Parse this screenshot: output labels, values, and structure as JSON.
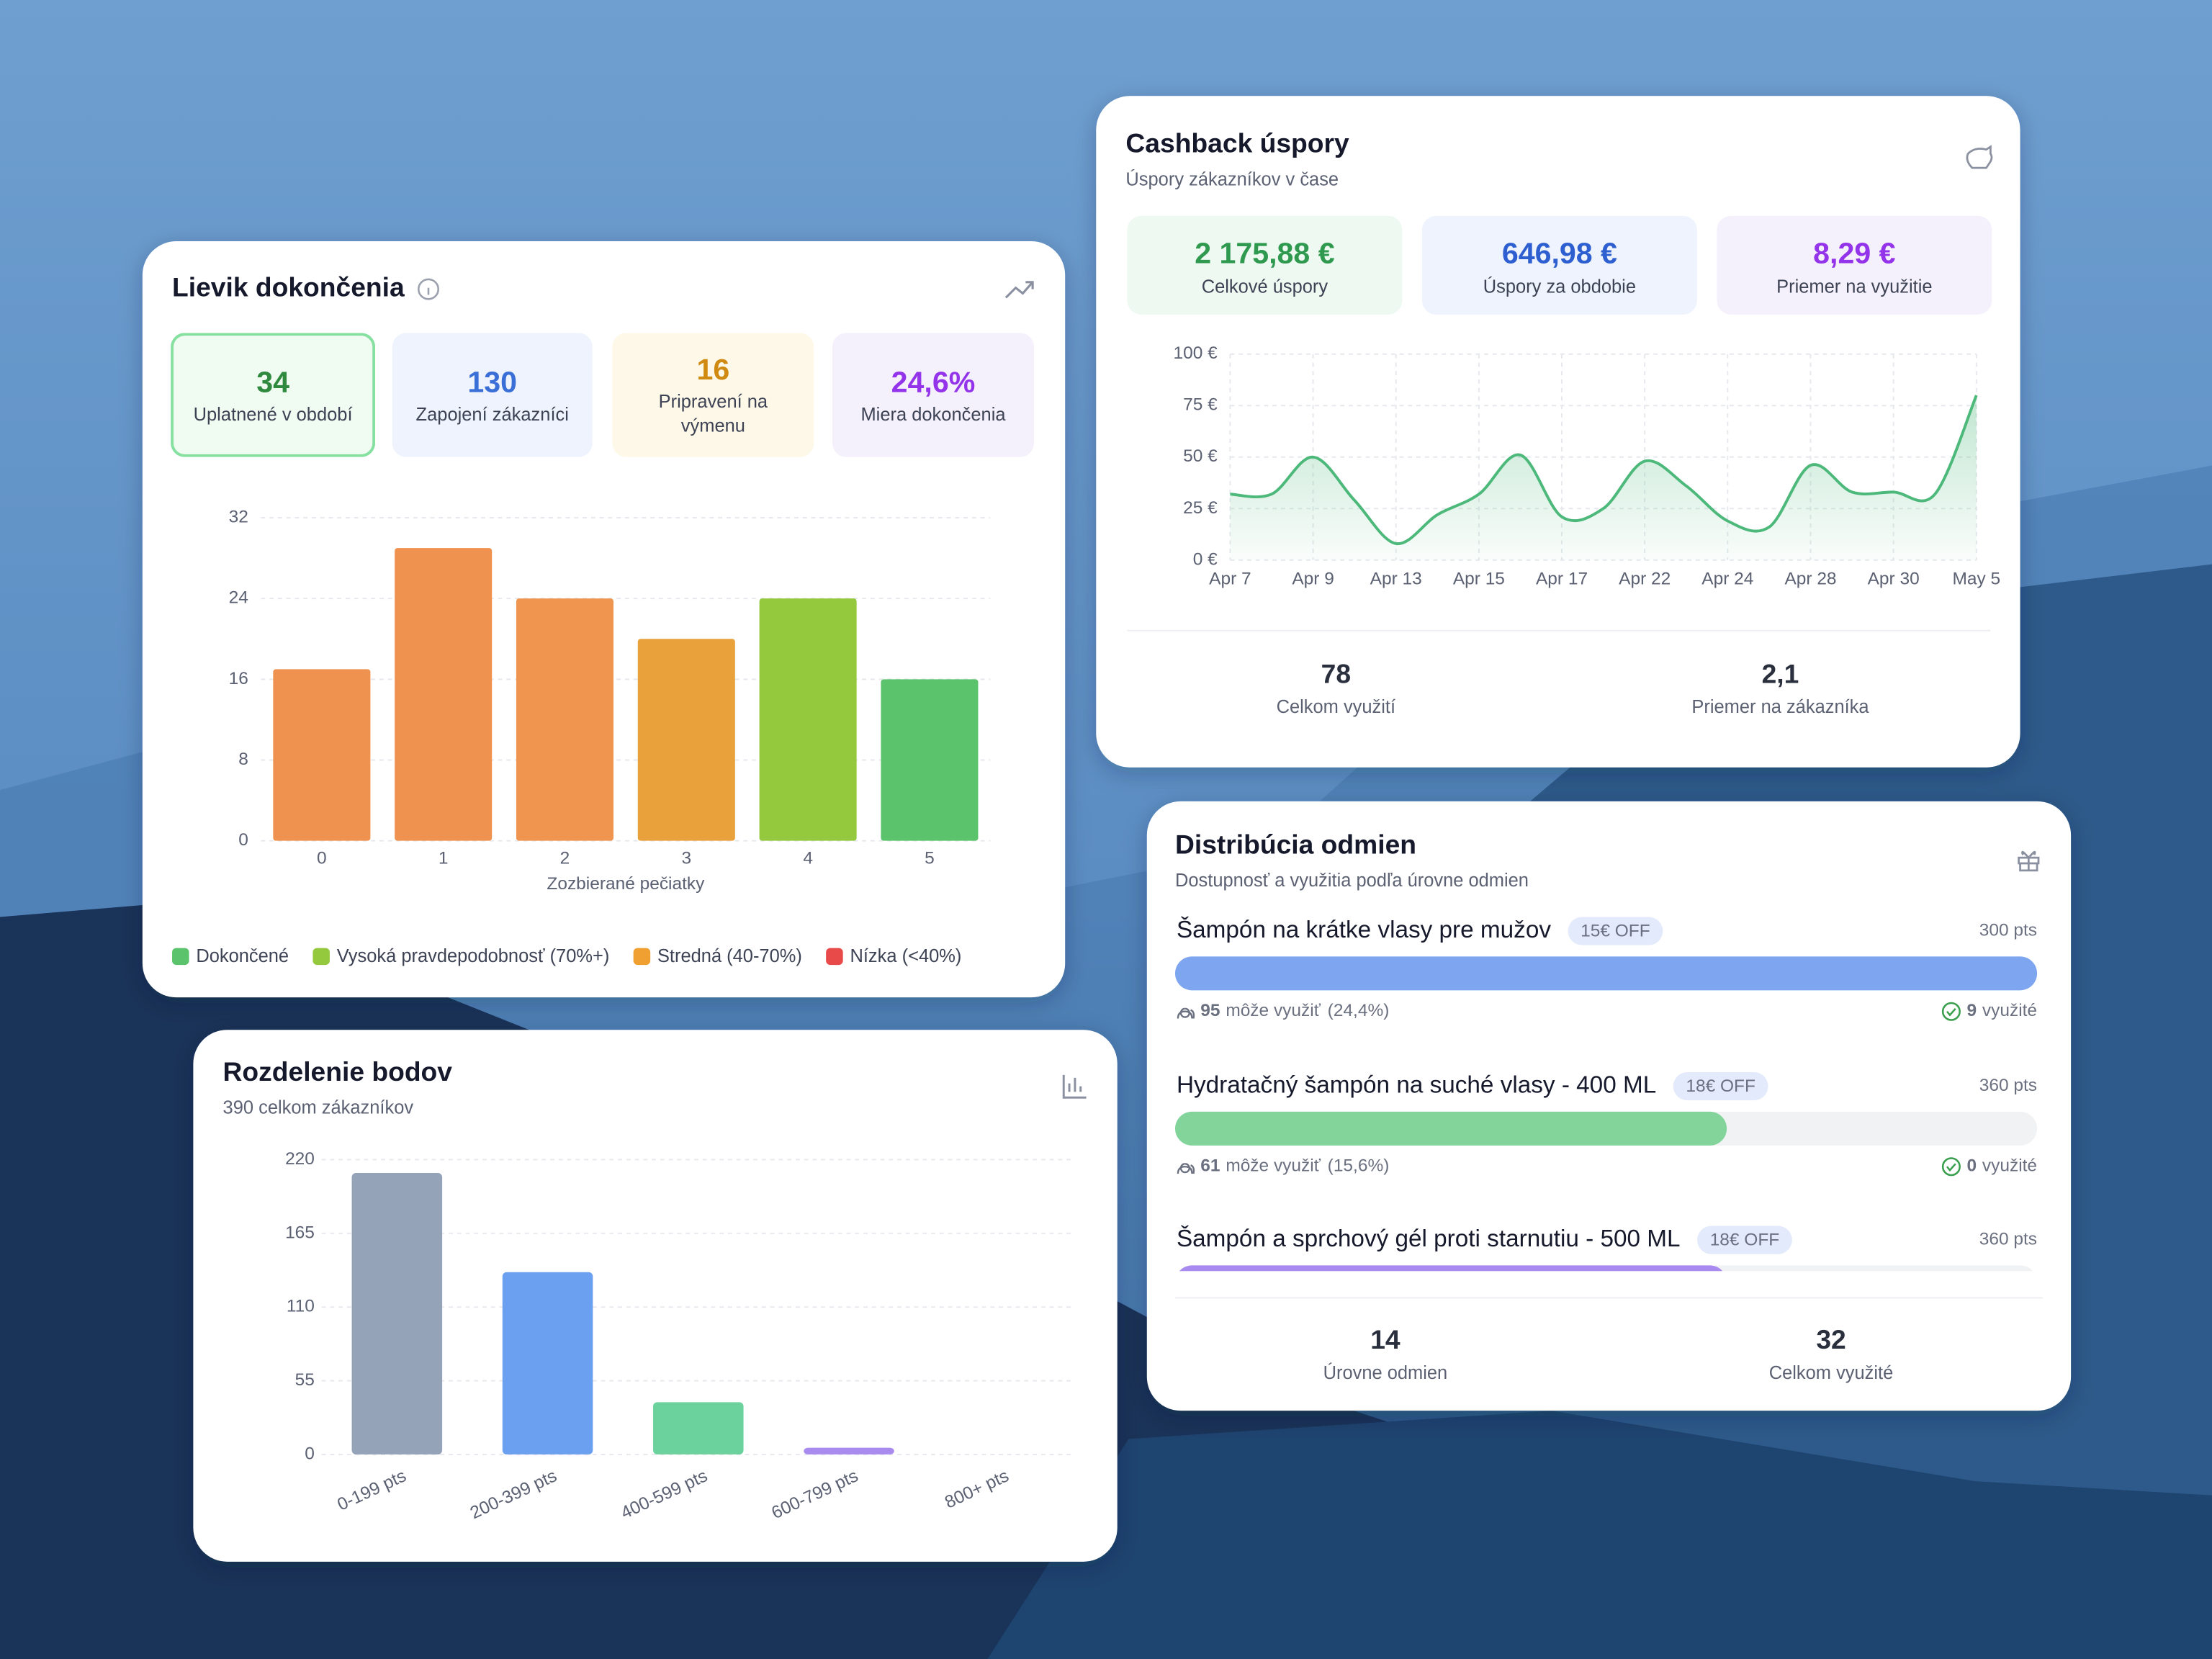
{
  "chart_data": [
    {
      "type": "bar",
      "title": "Lievik dokončenia",
      "stats": [
        {
          "value": "34",
          "label": "Uplatnené v období"
        },
        {
          "value": "130",
          "label": "Zapojení zákazníci"
        },
        {
          "value": "16",
          "label": "Pripravení na výmenu"
        },
        {
          "value": "24,6%",
          "label": "Miera dokončenia"
        }
      ],
      "categories": [
        "0",
        "1",
        "2",
        "3",
        "4",
        "5"
      ],
      "values": [
        17,
        29,
        24,
        20,
        24,
        16
      ],
      "colors": [
        "#f0924f",
        "#f0924f",
        "#ef9550",
        "#e9a23b",
        "#94c83d",
        "#5bc36b"
      ],
      "ylim": [
        0,
        32
      ],
      "yticks": [
        0,
        8,
        16,
        24,
        32
      ],
      "xlabel": "Zozbierané pečiatky",
      "grid": true,
      "legend": [
        {
          "name": "Dokončené",
          "color": "#5bc36b"
        },
        {
          "name": "Vysoká pravdepodobnosť (70%+)",
          "color": "#94c83d"
        },
        {
          "name": "Stredná (40-70%)",
          "color": "#f0a030"
        },
        {
          "name": "Nízka (<40%)",
          "color": "#e84a4a"
        }
      ]
    },
    {
      "type": "line",
      "title": "Cashback úspory",
      "subtitle": "Úspory zákazníkov v čase",
      "stats": [
        {
          "value": "2 175,88 €",
          "label": "Celkové úspory"
        },
        {
          "value": "646,98 €",
          "label": "Úspory za obdobie"
        },
        {
          "value": "8,29 €",
          "label": "Priemer na využitie"
        }
      ],
      "categories": [
        "Apr 7",
        null,
        "Apr 9",
        null,
        "Apr 13",
        null,
        "Apr 15",
        null,
        "Apr 17",
        null,
        "Apr 22",
        null,
        "Apr 24",
        null,
        "Apr 28",
        null,
        "Apr 30",
        null,
        "May 5"
      ],
      "series": [
        {
          "name": "Úspory",
          "color": "#4cb87a",
          "values": [
            32,
            32,
            50,
            29,
            8,
            22,
            32,
            51,
            21,
            25,
            48,
            36,
            19,
            16,
            46,
            33,
            33,
            32,
            80
          ]
        }
      ],
      "ylim": [
        0,
        100
      ],
      "yticks": [
        {
          "value": 0,
          "label": "0 €"
        },
        {
          "value": 25,
          "label": "25 €"
        },
        {
          "value": 50,
          "label": "50 €"
        },
        {
          "value": 75,
          "label": "75 €"
        },
        {
          "value": 100,
          "label": "100 €"
        }
      ],
      "grid": true,
      "footer": [
        {
          "value": "78",
          "label": "Celkom využití"
        },
        {
          "value": "2,1",
          "label": "Priemer na zákazníka"
        }
      ]
    },
    {
      "type": "bar",
      "title": "Rozdelenie bodov",
      "subtitle": "390 celkom zákazníkov",
      "categories": [
        "0-199 pts",
        "200-399 pts",
        "400-599 pts",
        "600-799 pts",
        "800+ pts"
      ],
      "values": [
        210,
        136,
        39,
        5,
        0
      ],
      "colors": [
        "#94a3b8",
        "#6b9ff0",
        "#6cd29d",
        "#a98bf0",
        "#f0924f"
      ],
      "ylim": [
        0,
        220
      ],
      "yticks": [
        0,
        55,
        110,
        165,
        220
      ],
      "grid": true
    }
  ],
  "rewards_card": {
    "title": "Distribúcia odmien",
    "subtitle": "Dostupnosť a využitia podľa úrovne odmien",
    "items": [
      {
        "name": "Šampón na krátke vlasy pre mužov",
        "badge": "15€ OFF",
        "points": "300 pts",
        "eligible": "95",
        "eligible_text": "môže využiť",
        "percent": "(24,4%)",
        "used": "9",
        "used_text": "využité",
        "progress": 100,
        "color": "#7ea6f0"
      },
      {
        "name": "Hydratačný šampón na suché vlasy - 400 ML",
        "badge": "18€ OFF",
        "points": "360 pts",
        "eligible": "61",
        "eligible_text": "môže využiť",
        "percent": "(15,6%)",
        "used": "0",
        "used_text": "využité",
        "progress": 64,
        "color": "#82d49b"
      },
      {
        "name": "Šampón a sprchový gél proti starnutiu - 500 ML",
        "badge": "18€ OFF",
        "points": "360 pts",
        "progress": 64,
        "color": "#a98bf0"
      }
    ],
    "footer": [
      {
        "value": "14",
        "label": "Úrovne odmien"
      },
      {
        "value": "32",
        "label": "Celkom využité"
      }
    ]
  }
}
